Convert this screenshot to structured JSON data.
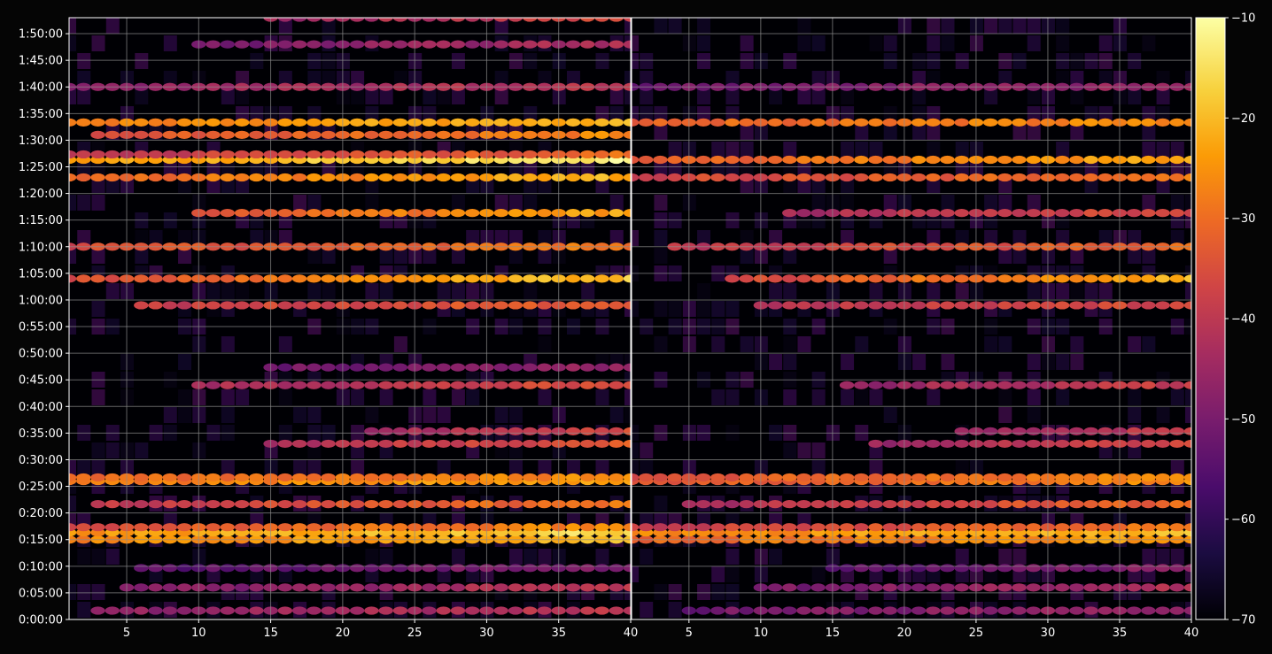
{
  "chart_data": [
    {
      "type": "heatmap",
      "panel": "left",
      "xlim": [
        1,
        40
      ],
      "x_ticks": [
        "5",
        "10",
        "15",
        "20",
        "25",
        "30",
        "35",
        "40"
      ],
      "ylim_seconds": [
        0,
        6780
      ],
      "y_ticks": [
        "0:00:00",
        "0:05:00",
        "0:10:00",
        "0:15:00",
        "0:20:00",
        "0:25:00",
        "0:30:00",
        "0:35:00",
        "0:40:00",
        "0:45:00",
        "0:50:00",
        "0:55:00",
        "1:00:00",
        "1:05:00",
        "1:10:00",
        "1:15:00",
        "1:20:00",
        "1:25:00",
        "1:30:00",
        "1:35:00",
        "1:40:00",
        "1:45:00",
        "1:50:00"
      ],
      "grid": true,
      "bands": [
        {
          "time": "0:01:40",
          "x": [
            3,
            40
          ],
          "level": [
            -50,
            -40
          ]
        },
        {
          "time": "0:06:00",
          "x": [
            5,
            40
          ],
          "level": [
            -55,
            -40
          ]
        },
        {
          "time": "0:09:40",
          "x": [
            6,
            40
          ],
          "level": [
            -58,
            -48
          ]
        },
        {
          "time": "0:15:00",
          "x": [
            1,
            40
          ],
          "level": [
            -30,
            -20
          ]
        },
        {
          "time": "0:16:20",
          "x": [
            1,
            40
          ],
          "level": [
            -30,
            -15
          ]
        },
        {
          "time": "0:17:20",
          "x": [
            1,
            40
          ],
          "level": [
            -40,
            -25
          ]
        },
        {
          "time": "0:21:40",
          "x": [
            3,
            40
          ],
          "level": [
            -45,
            -28
          ]
        },
        {
          "time": "0:26:00",
          "x": [
            1,
            40
          ],
          "level": [
            -32,
            -22
          ]
        },
        {
          "time": "0:26:40",
          "x": [
            1,
            40
          ],
          "level": [
            -35,
            -25
          ]
        },
        {
          "time": "0:33:00",
          "x": [
            15,
            40
          ],
          "level": [
            -48,
            -32
          ]
        },
        {
          "time": "0:35:20",
          "x": [
            22,
            40
          ],
          "level": [
            -50,
            -35
          ]
        },
        {
          "time": "0:44:00",
          "x": [
            10,
            40
          ],
          "level": [
            -48,
            -35
          ]
        },
        {
          "time": "0:47:20",
          "x": [
            15,
            40
          ],
          "level": [
            -55,
            -45
          ]
        },
        {
          "time": "0:59:00",
          "x": [
            6,
            40
          ],
          "level": [
            -42,
            -32
          ]
        },
        {
          "time": "1:04:00",
          "x": [
            1,
            40
          ],
          "level": [
            -45,
            -18
          ]
        },
        {
          "time": "1:10:00",
          "x": [
            1,
            40
          ],
          "level": [
            -40,
            -28
          ]
        },
        {
          "time": "1:16:20",
          "x": [
            10,
            40
          ],
          "level": [
            -40,
            -22
          ]
        },
        {
          "time": "1:23:00",
          "x": [
            1,
            40
          ],
          "level": [
            -38,
            -20
          ]
        },
        {
          "time": "1:26:20",
          "x": [
            1,
            40
          ],
          "level": [
            -30,
            -12
          ]
        },
        {
          "time": "1:27:20",
          "x": [
            1,
            40
          ],
          "level": [
            -45,
            -30
          ]
        },
        {
          "time": "1:31:00",
          "x": [
            3,
            40
          ],
          "level": [
            -38,
            -26
          ]
        },
        {
          "time": "1:33:20",
          "x": [
            1,
            40
          ],
          "level": [
            -30,
            -20
          ]
        },
        {
          "time": "1:40:00",
          "x": [
            1,
            40
          ],
          "level": [
            -50,
            -40
          ]
        },
        {
          "time": "1:48:00",
          "x": [
            10,
            40
          ],
          "level": [
            -55,
            -42
          ]
        },
        {
          "time": "1:53:00",
          "x": [
            15,
            40
          ],
          "level": [
            -50,
            -35
          ]
        }
      ]
    },
    {
      "type": "heatmap",
      "panel": "right",
      "xlim": [
        1,
        40
      ],
      "x_ticks": [
        "5",
        "10",
        "15",
        "20",
        "25",
        "30",
        "35",
        "40"
      ],
      "ylim_seconds": [
        0,
        6780
      ],
      "grid": true,
      "bands": [
        {
          "time": "0:01:40",
          "x": [
            5,
            40
          ],
          "level": [
            -55,
            -45
          ]
        },
        {
          "time": "0:06:00",
          "x": [
            10,
            40
          ],
          "level": [
            -55,
            -42
          ]
        },
        {
          "time": "0:09:40",
          "x": [
            15,
            40
          ],
          "level": [
            -58,
            -48
          ]
        },
        {
          "time": "0:15:00",
          "x": [
            1,
            40
          ],
          "level": [
            -35,
            -22
          ]
        },
        {
          "time": "0:16:20",
          "x": [
            1,
            40
          ],
          "level": [
            -32,
            -18
          ]
        },
        {
          "time": "0:17:20",
          "x": [
            1,
            40
          ],
          "level": [
            -45,
            -28
          ]
        },
        {
          "time": "0:21:40",
          "x": [
            5,
            40
          ],
          "level": [
            -50,
            -30
          ]
        },
        {
          "time": "0:26:00",
          "x": [
            1,
            40
          ],
          "level": [
            -38,
            -25
          ]
        },
        {
          "time": "0:26:40",
          "x": [
            1,
            40
          ],
          "level": [
            -40,
            -25
          ]
        },
        {
          "time": "0:33:00",
          "x": [
            18,
            40
          ],
          "level": [
            -50,
            -35
          ]
        },
        {
          "time": "0:35:20",
          "x": [
            24,
            40
          ],
          "level": [
            -52,
            -38
          ]
        },
        {
          "time": "0:44:00",
          "x": [
            16,
            40
          ],
          "level": [
            -50,
            -38
          ]
        },
        {
          "time": "0:59:00",
          "x": [
            10,
            40
          ],
          "level": [
            -45,
            -35
          ]
        },
        {
          "time": "1:04:00",
          "x": [
            8,
            40
          ],
          "level": [
            -45,
            -20
          ]
        },
        {
          "time": "1:10:00",
          "x": [
            4,
            40
          ],
          "level": [
            -45,
            -30
          ]
        },
        {
          "time": "1:16:20",
          "x": [
            12,
            40
          ],
          "level": [
            -48,
            -35
          ]
        },
        {
          "time": "1:23:00",
          "x": [
            1,
            40
          ],
          "level": [
            -42,
            -28
          ]
        },
        {
          "time": "1:26:20",
          "x": [
            1,
            40
          ],
          "level": [
            -38,
            -22
          ]
        },
        {
          "time": "1:33:20",
          "x": [
            1,
            40
          ],
          "level": [
            -35,
            -25
          ]
        },
        {
          "time": "1:40:00",
          "x": [
            1,
            40
          ],
          "level": [
            -55,
            -45
          ]
        }
      ]
    }
  ],
  "colorbar": {
    "range": [
      -70,
      -10
    ],
    "ticks": [
      "−10",
      "−20",
      "−30",
      "−40",
      "−50",
      "−60",
      "−70"
    ],
    "colormap": [
      "#000004",
      "#1b0c41",
      "#4a0c6b",
      "#781c6d",
      "#a52c60",
      "#cf4446",
      "#ed6925",
      "#fb9b06",
      "#f7d13d",
      "#fcffa4"
    ]
  },
  "style": {
    "background": "#050505",
    "frame": "#ffffff",
    "grid": "#8c8c8c"
  }
}
